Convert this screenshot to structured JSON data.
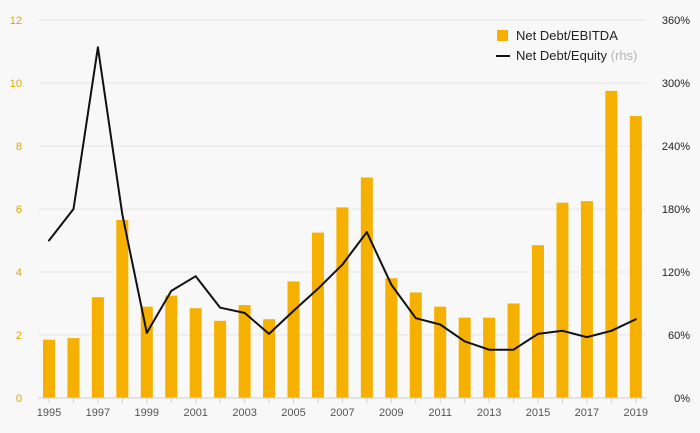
{
  "chart_data": {
    "type": "bar+line",
    "x": [
      1995,
      1996,
      1997,
      1998,
      1999,
      2000,
      2001,
      2002,
      2003,
      2004,
      2005,
      2006,
      2007,
      2008,
      2009,
      2010,
      2011,
      2012,
      2013,
      2014,
      2015,
      2016,
      2017,
      2018,
      2019
    ],
    "x_tick_labels": [
      "1995",
      "1997",
      "1999",
      "2001",
      "2003",
      "2005",
      "2007",
      "2009",
      "2011",
      "2013",
      "2015",
      "2017",
      "2019"
    ],
    "series": [
      {
        "name": "Net Debt/EBITDA",
        "type": "bar",
        "axis": "left",
        "color": "#f5b000",
        "values": [
          1.85,
          1.9,
          3.2,
          5.65,
          2.9,
          3.25,
          2.85,
          2.45,
          2.95,
          2.5,
          3.7,
          5.25,
          6.05,
          7.0,
          3.8,
          3.35,
          2.9,
          2.55,
          2.55,
          3.0,
          4.85,
          6.2,
          6.25,
          9.75,
          8.95
        ]
      },
      {
        "name": "Net Debt/Equity",
        "name_suffix": "(rhs)",
        "type": "line",
        "axis": "right",
        "color": "#111111",
        "values": [
          150,
          180,
          334,
          175,
          62,
          102,
          116,
          86,
          81,
          61,
          83,
          104,
          127,
          158,
          108,
          76,
          70,
          54,
          46,
          46,
          61,
          64,
          58,
          64,
          75
        ]
      }
    ],
    "y_left": {
      "min": 0,
      "max": 12,
      "ticks": [
        "0",
        "2",
        "4",
        "6",
        "8",
        "10",
        "12"
      ],
      "color": "#e0a400"
    },
    "y_right": {
      "min": 0,
      "max": 360,
      "ticks": [
        "0%",
        "60%",
        "120%",
        "180%",
        "240%",
        "300%",
        "360%"
      ]
    },
    "grid": true,
    "legend_position": "top-right"
  }
}
